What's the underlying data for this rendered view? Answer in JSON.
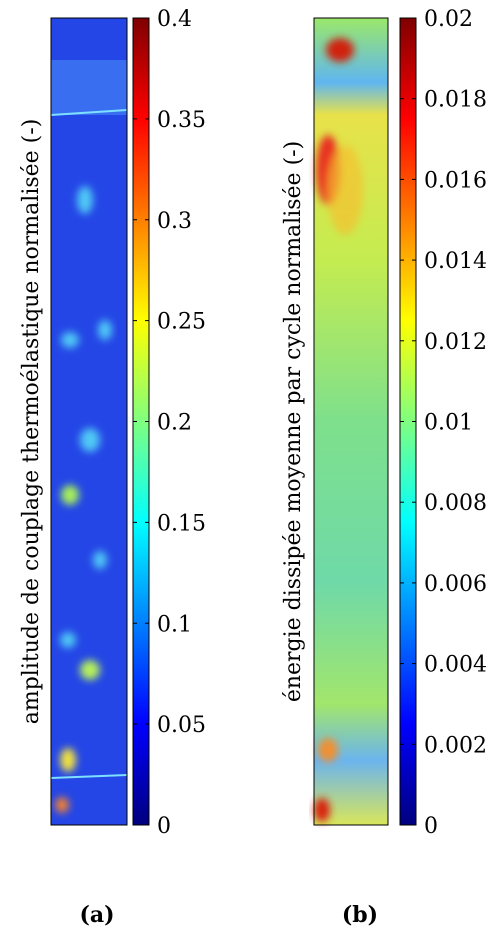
{
  "chart_data": [
    {
      "type": "heatmap",
      "colormap": "jet",
      "colorbar_label": "amplitude de couplage thermoélastique normalisée (-)",
      "clim": [
        0,
        0.4
      ],
      "cticks": [
        0,
        0.05,
        0.1,
        0.15,
        0.2,
        0.25,
        0.3,
        0.35,
        0.4
      ],
      "caption": "(a)"
    },
    {
      "type": "heatmap",
      "colormap": "jet",
      "colorbar_label": "énergie dissipée moyenne par cycle normalisée (-)",
      "clim": [
        0,
        0.02
      ],
      "cticks": [
        0,
        0.002,
        0.004,
        0.006,
        0.008,
        0.01,
        0.012,
        0.014,
        0.016,
        0.018,
        0.02
      ],
      "caption": "(b)"
    }
  ]
}
